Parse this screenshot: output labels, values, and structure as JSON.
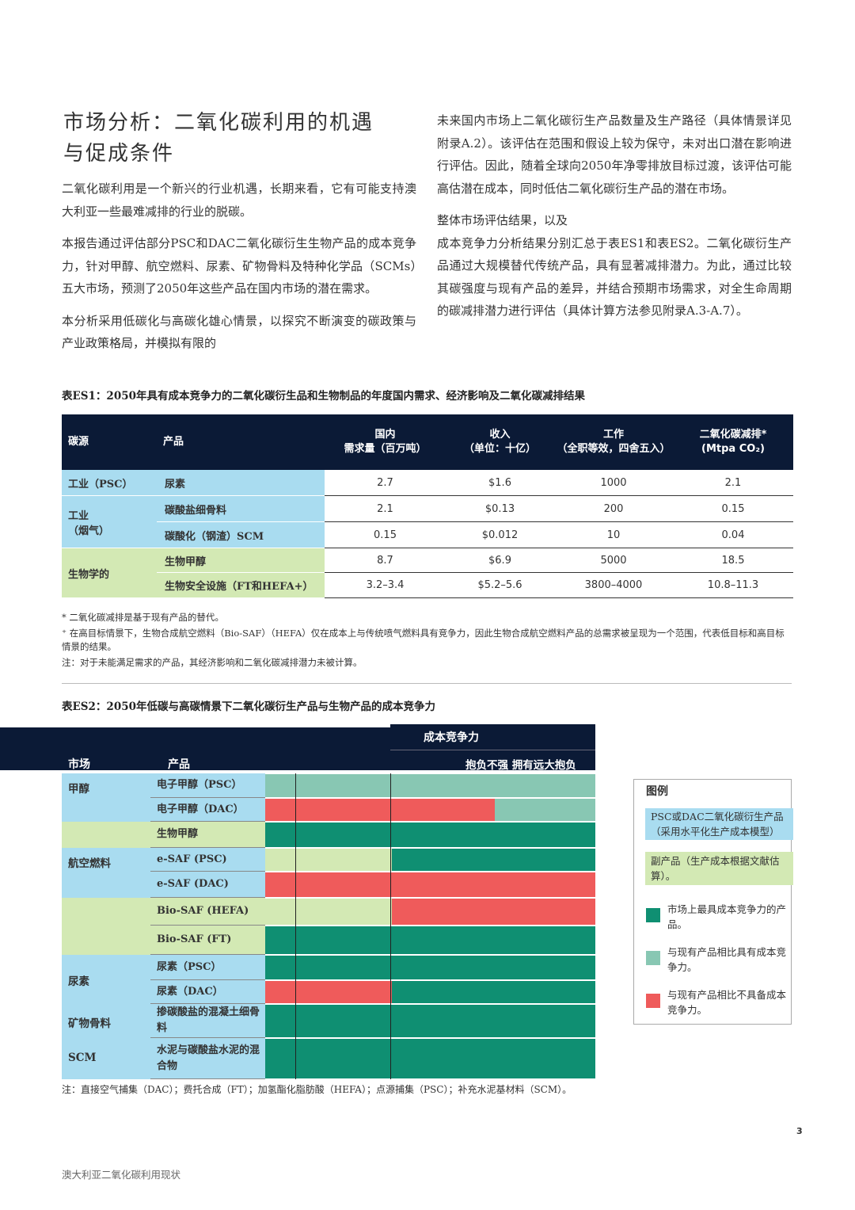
{
  "header": {
    "title_lines": [
      "市场分析：二氧化碳利用的机遇",
      "与促成条件"
    ]
  },
  "left_paragraphs": [
    "二氧化碳利用是一个新兴的行业机遇，长期来看，它有可能支持澳大利亚一些最难减排的行业的脱碳。",
    "本报告通过评估部分PSC和DAC二氧化碳衍生生物产品的成本竞争力，针对甲醇、航空燃料、尿素、矿物骨料及特种化学品（SCMs）五大市场，预测了2050年这些产品在国内市场的潜在需求。",
    "本分析采用低碳化与高碳化雄心情景，以探究不断演变的碳政策与产业政策格局，并模拟有限的"
  ],
  "right_paragraphs": [
    "未来国内市场上二氧化碳衍生产品数量及生产路径（具体情景详见附录A.2）。该评估在范围和假设上较为保守，未对出口潜在影响进行评估。因此，随着全球向2050年净零排放目标过渡，该评估可能高估潜在成本，同时低估二氧化碳衍生产品的潜在市场。",
    "整体市场评估结果，以及",
    "成本竞争力分析结果分别汇总于表ES1和表ES2。二氧化碳衍生产品通过大规模替代传统产品，具有显著减排潜力。为此，通过比较其碳强度与现有产品的差异，并结合预期市场需求，对全生命周期的碳减排潜力进行评估（具体计算方法参见附录A.3-A.7）。"
  ],
  "table1": {
    "caption": "表ES1：2050年具有成本竞争力的二氧化碳衍生品和生物制品的年度国内需求、经济影响及二氧化碳减排结果",
    "header": [
      "碳源",
      "产品",
      "国内\n需求量（百万吨）",
      "收入\n（单位：十亿）",
      "工作\n（全职等效，四舍五入）",
      "二氧化碳减排*\n(Mtpa CO₂)"
    ],
    "groups": [
      {
        "source": "工业（PSC）",
        "rows": [
          {
            "product": "尿素",
            "values": [
              "2.7",
              "$1.6",
              "1000",
              "2.1"
            ]
          }
        ]
      },
      {
        "source": "工业\n（烟气）",
        "rows": [
          {
            "product": "碳酸盐细骨料",
            "values": [
              "2.1",
              "$0.13",
              "200",
              "0.15"
            ]
          },
          {
            "product": "碳酸化（钢渣）SCM",
            "values": [
              "0.15",
              "$0.012",
              "10",
              "0.04"
            ]
          }
        ]
      },
      {
        "source": "生物学的",
        "rows": [
          {
            "product": "生物甲醇",
            "values": [
              "8.7",
              "$6.9",
              "5000",
              "18.5"
            ]
          },
          {
            "product": "生物安全设施（FT和HEFA+）",
            "values": [
              "3.2–3.4",
              "$5.2–5.6",
              "3800–4000",
              "10.8–11.3"
            ]
          }
        ]
      }
    ],
    "footnotes": [
      "* 二氧化碳减排是基于现有产品的替代。",
      "⁺ 在高目标情景下，生物合成航空燃料（Bio-SAF）（HEFA）仅在成本上与传统喷气燃料具有竞争力，因此生物合成航空燃料产品的总需求被呈现为一个范围，代表低目标和高目标情景的结果。",
      "注：对于未能满足需求的产品，其经济影响和二氧化碳减排潜力未被计算。"
    ]
  },
  "table2": {
    "caption": "表ES2：2050年低碳与高碳情景下二氧化碳衍生产品与生物产品的成本竞争力",
    "header": {
      "market": "市场",
      "product": "产品",
      "competitiveness": "成本竞争力",
      "scale": "抱负不强 拥有远大抱负"
    },
    "groups": [
      {
        "market": "甲醇",
        "products": [
          "电子甲醇（PSC）",
          "电子甲醇（DAC）",
          "生物甲醇"
        ]
      },
      {
        "market": "航空燃料",
        "products": [
          "e-SAF (PSC)",
          "e-SAF (DAC)",
          "Bio-SAF (HEFA)",
          "Bio-SAF (FT)"
        ]
      },
      {
        "market": "尿素",
        "products": [
          "尿素（PSC）",
          "尿素（DAC）"
        ]
      },
      {
        "market": "矿物骨料",
        "products": [
          "掺碳酸盐的混凝土细骨料"
        ]
      },
      {
        "market": "SCM",
        "products": [
          "水泥与碳酸盐水泥的混合物"
        ]
      }
    ],
    "legend": {
      "title": "图例",
      "items": [
        "PSC或DAC二氧化碳衍生产品（采用水平化生产成本模型）",
        "副产品（生产成本根据文献估算）。",
        "市场上最具成本竞争力的产品。",
        "与现有产品相比具有成本竞争力。",
        "与现有产品相比不具备成本竞争力。"
      ]
    },
    "note": "注：直接空气捕集（DAC）；费托合成（FT）；加氢酯化脂肪酸（HEFA）；点源捕集（PSC）；补充水泥基材料（SCM）。"
  },
  "page_number": "3",
  "footer": "澳大利亚二氧化碳利用现状"
}
